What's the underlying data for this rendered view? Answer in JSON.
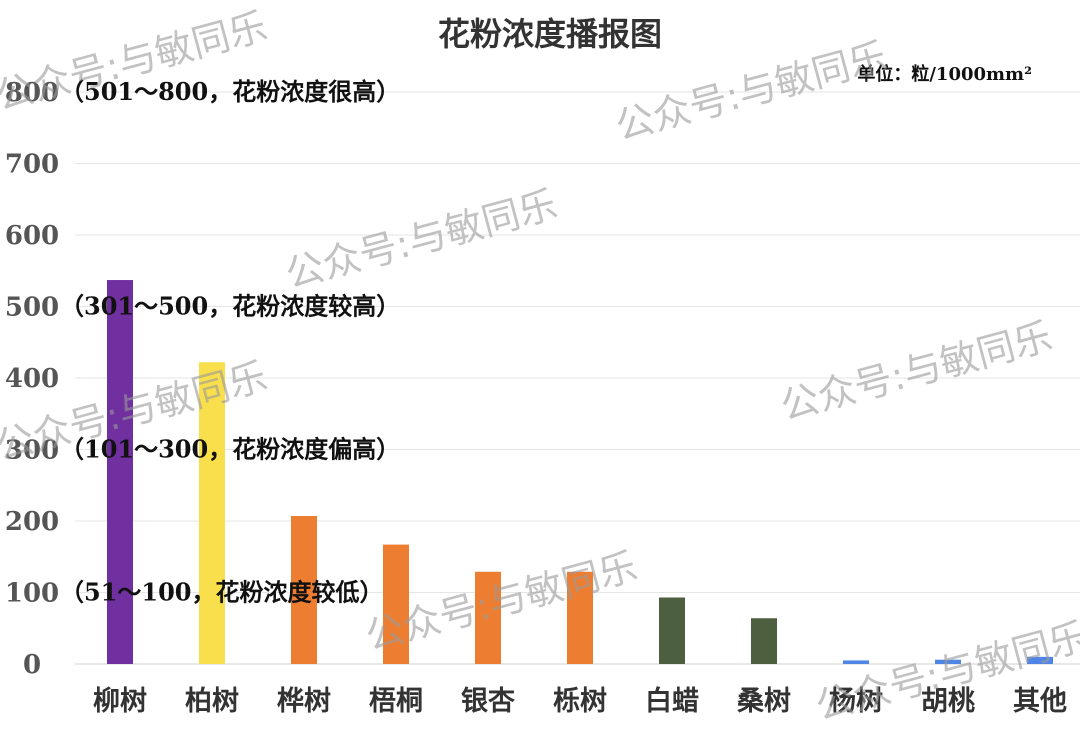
{
  "chart_data": {
    "type": "bar",
    "title": "花粉浓度播报图",
    "unit": "单位：粒/1000mm²",
    "ylim": [
      0,
      800
    ],
    "yticks": [
      0,
      100,
      200,
      300,
      400,
      500,
      600,
      700,
      800
    ],
    "grid": true,
    "categories": [
      "柳树",
      "柏树",
      "桦树",
      "梧桐",
      "银杏",
      "栎树",
      "白蜡",
      "桑树",
      "杨树",
      "胡桃",
      "其他"
    ],
    "values": [
      537,
      422,
      207,
      167,
      129,
      129,
      93,
      64,
      5,
      6,
      10
    ],
    "colors": [
      "#7030a0",
      "#f9df4b",
      "#ed7d31",
      "#ed7d31",
      "#ed7d31",
      "#ed7d31",
      "#4e5f3f",
      "#4e5f3f",
      "#4f86e6",
      "#4f86e6",
      "#4f86e6"
    ],
    "level_annotations": [
      {
        "label": "（501～800，花粉浓度很高）",
        "value": 800
      },
      {
        "label": "（301～500，花粉浓度较高）",
        "value": 500
      },
      {
        "label": "（101～300，花粉浓度偏高）",
        "value": 300
      },
      {
        "label": "（51～100，花粉浓度较低）",
        "value": 100
      }
    ]
  },
  "watermark": "公众号:与敏同乐"
}
